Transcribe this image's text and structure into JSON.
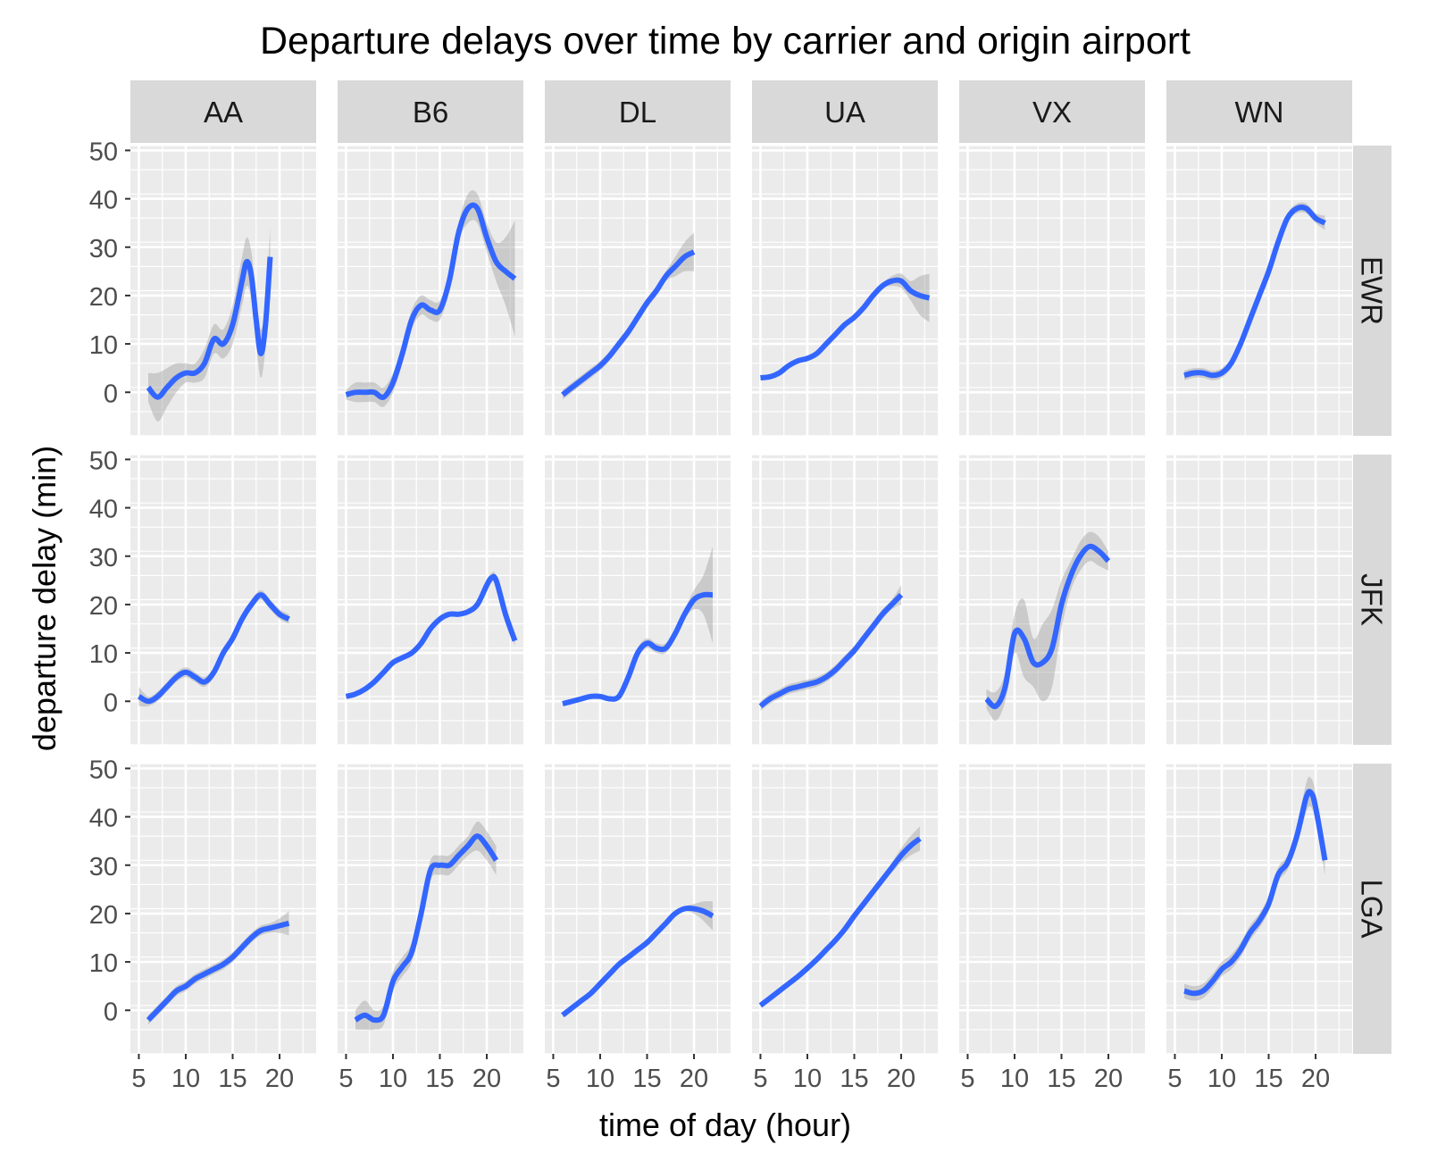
{
  "chart_data": {
    "type": "line",
    "title": "Departure delays over time by carrier and origin airport",
    "xlabel": "time of day (hour)",
    "ylabel": "departure delay (min)",
    "xlim": [
      4.1,
      23.9
    ],
    "ylim": [
      -9,
      51
    ],
    "x_ticks": [
      5,
      10,
      15,
      20
    ],
    "y_ticks": [
      0,
      10,
      20,
      30,
      40,
      50
    ],
    "grid": true,
    "columns": [
      "AA",
      "B6",
      "DL",
      "UA",
      "VX",
      "WN"
    ],
    "rows": [
      "EWR",
      "JFK",
      "LGA"
    ],
    "colors": {
      "line": "#3366ff",
      "ribbon": "#999999",
      "panel": "#ebebeb",
      "strip": "#d9d9d9"
    },
    "panels": [
      {
        "carrier": "AA",
        "origin": "EWR",
        "x": [
          6,
          7,
          8,
          9,
          10,
          11,
          12,
          13,
          14,
          15,
          16,
          16.5,
          17,
          17.5,
          18,
          18.5,
          19
        ],
        "y": [
          1,
          -1,
          1,
          3,
          4,
          4,
          6,
          11,
          10,
          14,
          23,
          27,
          24,
          15,
          8,
          14,
          28
        ],
        "se": [
          3,
          5,
          4,
          3,
          2,
          2,
          3,
          3,
          3,
          4,
          5,
          5,
          5,
          5,
          5,
          5,
          6
        ]
      },
      {
        "carrier": "AA",
        "origin": "JFK",
        "x": [
          5,
          6,
          7,
          8,
          9,
          10,
          11,
          12,
          13,
          14,
          15,
          16,
          17,
          18,
          19,
          20,
          21
        ],
        "y": [
          1,
          0,
          1,
          3,
          5,
          6,
          5,
          4,
          6,
          10,
          13,
          17,
          20,
          22,
          20,
          18,
          17
        ],
        "se": [
          2,
          1,
          1,
          1,
          1,
          1,
          1,
          1,
          1,
          1,
          1,
          1,
          1,
          1,
          1,
          1,
          1
        ]
      },
      {
        "carrier": "AA",
        "origin": "LGA",
        "x": [
          6,
          7,
          8,
          9,
          10,
          11,
          12,
          13,
          14,
          15,
          16,
          17,
          18,
          19,
          20,
          21
        ],
        "y": [
          -2,
          0,
          2,
          4,
          5,
          6.5,
          7.5,
          8.5,
          9.5,
          11,
          13,
          15,
          16.5,
          17,
          17.5,
          18
        ],
        "se": [
          1,
          1,
          1,
          1,
          1,
          1,
          1,
          1,
          1,
          1,
          1,
          1,
          1,
          1,
          1.5,
          2.5
        ]
      },
      {
        "carrier": "B6",
        "origin": "EWR",
        "x": [
          5,
          6,
          7,
          8,
          9,
          10,
          11,
          12,
          13,
          14,
          15,
          16,
          17,
          18,
          19,
          20,
          21,
          22,
          23
        ],
        "y": [
          -0.5,
          0,
          0,
          0,
          -1,
          2,
          8,
          15,
          18,
          17,
          17,
          23,
          33,
          38,
          38,
          32,
          27,
          25,
          23.5
        ],
        "se": [
          1,
          2,
          2,
          2,
          2,
          2,
          2,
          2,
          2,
          2,
          2,
          2,
          2,
          3,
          3,
          3,
          4,
          7,
          12
        ]
      },
      {
        "carrier": "B6",
        "origin": "JFK",
        "x": [
          5,
          6,
          7,
          8,
          9,
          10,
          11,
          12,
          13,
          14,
          15,
          16,
          17,
          18,
          19,
          20,
          20.5,
          21,
          22,
          23
        ],
        "y": [
          1,
          1.5,
          2.5,
          4,
          6,
          8,
          9,
          10,
          12,
          15,
          17,
          18,
          18,
          18.5,
          20,
          24,
          25.5,
          25,
          18,
          12.5
        ],
        "se": [
          0.5,
          0.5,
          0.5,
          0.5,
          0.5,
          0.5,
          0.5,
          0.5,
          0.5,
          0.5,
          0.5,
          0.5,
          0.5,
          0.5,
          0.5,
          1,
          1,
          1,
          1,
          1
        ]
      },
      {
        "carrier": "B6",
        "origin": "LGA",
        "x": [
          6,
          7,
          8,
          9,
          10,
          11,
          12,
          13,
          14,
          15,
          16,
          17,
          18,
          19,
          20,
          21
        ],
        "y": [
          -2,
          -1,
          -2,
          -1,
          6,
          9,
          12,
          20,
          29,
          30,
          30,
          32,
          34,
          36,
          34,
          31
        ],
        "se": [
          2,
          3,
          2,
          2,
          2,
          2,
          2,
          2,
          2,
          2,
          2,
          2,
          2,
          3,
          3,
          3
        ]
      },
      {
        "carrier": "DL",
        "origin": "EWR",
        "x": [
          6,
          7,
          8,
          9,
          10,
          11,
          12,
          13,
          14,
          15,
          16,
          17,
          18,
          19,
          20
        ],
        "y": [
          -0.5,
          1,
          2.5,
          4,
          5.5,
          7.5,
          10,
          12.5,
          15.5,
          18.5,
          21,
          24,
          26,
          28,
          29
        ],
        "se": [
          1,
          1,
          1,
          1,
          1,
          1,
          1,
          1,
          1,
          1,
          1,
          1,
          2,
          3,
          4
        ]
      },
      {
        "carrier": "DL",
        "origin": "JFK",
        "x": [
          6,
          7,
          8,
          9,
          10,
          11,
          12,
          13,
          14,
          15,
          16,
          17,
          18,
          19,
          20,
          21,
          22
        ],
        "y": [
          -0.5,
          0,
          0.5,
          1,
          1,
          0.5,
          1,
          5,
          10,
          12,
          11,
          11,
          14,
          18,
          21,
          22,
          22
        ],
        "se": [
          0.5,
          0.5,
          0.5,
          0.5,
          0.5,
          0.5,
          0.5,
          1,
          1,
          1,
          1,
          1,
          1,
          1,
          2,
          4,
          10
        ]
      },
      {
        "carrier": "DL",
        "origin": "LGA",
        "x": [
          6,
          7,
          8,
          9,
          10,
          11,
          12,
          13,
          14,
          15,
          16,
          17,
          18,
          19,
          20,
          21,
          22
        ],
        "y": [
          -1,
          0.5,
          2,
          3.5,
          5.5,
          7.5,
          9.5,
          11,
          12.5,
          14,
          16,
          18,
          20,
          21,
          21,
          20.5,
          19.5
        ],
        "se": [
          0.5,
          0.5,
          0.5,
          0.5,
          0.5,
          0.5,
          0.5,
          0.5,
          0.5,
          0.5,
          0.5,
          0.5,
          0.5,
          0.5,
          1,
          2,
          3
        ]
      },
      {
        "carrier": "UA",
        "origin": "EWR",
        "x": [
          5,
          6,
          7,
          8,
          9,
          10,
          11,
          12,
          13,
          14,
          15,
          16,
          17,
          18,
          19,
          20,
          21,
          22,
          23
        ],
        "y": [
          3,
          3.2,
          4,
          5.5,
          6.5,
          7,
          8,
          10,
          12,
          14,
          15.5,
          17.5,
          20,
          22,
          23,
          23,
          21,
          20,
          19.5
        ],
        "se": [
          0.5,
          0.5,
          0.5,
          0.5,
          0.5,
          0.5,
          0.5,
          0.5,
          0.5,
          0.5,
          0.5,
          0.5,
          0.5,
          0.5,
          1,
          1.5,
          2,
          4,
          5
        ]
      },
      {
        "carrier": "UA",
        "origin": "JFK",
        "x": [
          5,
          6,
          7,
          8,
          9,
          10,
          11,
          12,
          13,
          14,
          15,
          16,
          17,
          18,
          19,
          20
        ],
        "y": [
          -1,
          0.5,
          1.5,
          2.5,
          3,
          3.5,
          4,
          5,
          6.5,
          8.5,
          10.5,
          13,
          15.5,
          18,
          20,
          22
        ],
        "se": [
          1,
          1,
          1,
          1,
          1,
          1,
          1,
          1,
          1,
          1,
          1,
          1,
          1,
          1,
          1,
          2
        ]
      },
      {
        "carrier": "UA",
        "origin": "LGA",
        "x": [
          5,
          6,
          7,
          8,
          9,
          10,
          11,
          12,
          13,
          14,
          15,
          16,
          17,
          18,
          19,
          20,
          21,
          22
        ],
        "y": [
          1,
          2.5,
          4,
          5.5,
          7,
          8.7,
          10.5,
          12.5,
          14.5,
          16.8,
          19.5,
          22,
          24.5,
          27,
          29.5,
          32,
          34,
          35.5
        ],
        "se": [
          0.5,
          0.5,
          0.5,
          0.5,
          0.5,
          0.5,
          0.5,
          0.5,
          0.5,
          0.5,
          0.5,
          0.5,
          0.5,
          0.5,
          1,
          1.5,
          2,
          2.5
        ]
      },
      {
        "carrier": "VX",
        "origin": "JFK",
        "x": [
          7,
          8,
          9,
          10,
          11,
          12,
          13,
          14,
          15,
          16,
          17,
          18,
          19,
          20
        ],
        "y": [
          0.5,
          -1,
          3,
          14,
          13,
          8,
          8,
          11,
          20,
          26,
          30,
          32,
          31,
          29
        ],
        "se": [
          2,
          3,
          3,
          4,
          8,
          5,
          8,
          8,
          5,
          3,
          3,
          3,
          3,
          2
        ]
      },
      {
        "carrier": "WN",
        "origin": "EWR",
        "x": [
          6,
          7,
          8,
          9,
          10,
          11,
          12,
          13,
          14,
          15,
          16,
          17,
          18,
          19,
          20,
          21
        ],
        "y": [
          3.5,
          4,
          4,
          3.5,
          4,
          6,
          10,
          15,
          20,
          25,
          31,
          36,
          38,
          38,
          36,
          35
        ],
        "se": [
          1,
          1,
          1,
          1,
          1,
          1,
          1,
          1,
          1,
          1,
          1,
          1,
          1,
          1,
          1,
          1.5
        ]
      },
      {
        "carrier": "WN",
        "origin": "LGA",
        "x": [
          6,
          7,
          8,
          9,
          10,
          11,
          12,
          13,
          14,
          15,
          16,
          17,
          18,
          19,
          19.5,
          20,
          21
        ],
        "y": [
          4,
          3.5,
          4,
          6,
          8.5,
          10,
          12.5,
          16,
          18.5,
          22,
          28,
          30.5,
          36,
          44,
          45,
          42,
          31
        ],
        "se": [
          1.5,
          1.5,
          1.5,
          1.5,
          1.5,
          1.5,
          1.5,
          1.5,
          1.5,
          1.5,
          1.5,
          1.5,
          2,
          3,
          3,
          3,
          3
        ]
      }
    ]
  }
}
